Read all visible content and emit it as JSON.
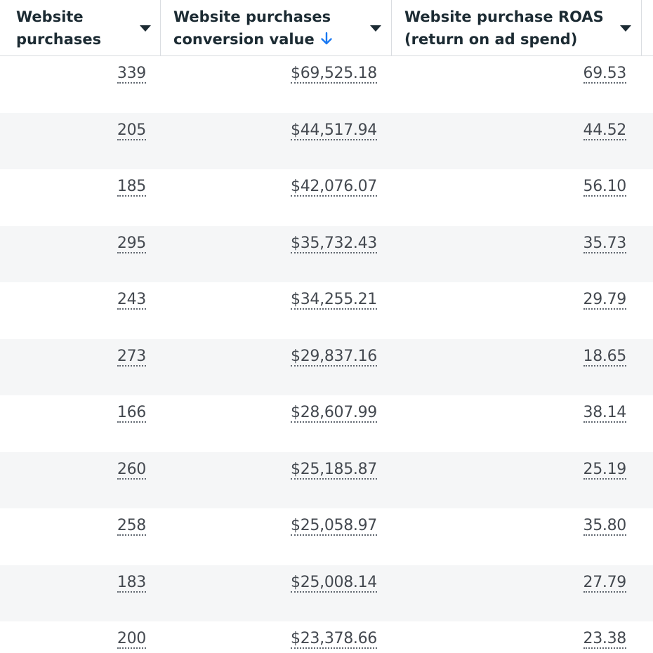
{
  "columns": [
    {
      "label_line1": "Website",
      "label_line2": "purchases",
      "sorted": false
    },
    {
      "label_line1": "Website purchases",
      "label_line2": "conversion value",
      "sorted": true
    },
    {
      "label_line1": "Website purchase ROAS",
      "label_line2": "(return on ad spend)",
      "sorted": false
    }
  ],
  "colors": {
    "sort_arrow": "#1877f2",
    "stripe": "#f5f6f7",
    "text": "#444950",
    "header_text": "#1c2b33"
  },
  "icons": {
    "sort": "arrow-down-icon",
    "dropdown": "caret-down-icon"
  },
  "rows": [
    {
      "purchases": "339",
      "value": "$69,525.18",
      "roas": "69.53"
    },
    {
      "purchases": "205",
      "value": "$44,517.94",
      "roas": "44.52"
    },
    {
      "purchases": "185",
      "value": "$42,076.07",
      "roas": "56.10"
    },
    {
      "purchases": "295",
      "value": "$35,732.43",
      "roas": "35.73"
    },
    {
      "purchases": "243",
      "value": "$34,255.21",
      "roas": "29.79"
    },
    {
      "purchases": "273",
      "value": "$29,837.16",
      "roas": "18.65"
    },
    {
      "purchases": "166",
      "value": "$28,607.99",
      "roas": "38.14"
    },
    {
      "purchases": "260",
      "value": "$25,185.87",
      "roas": "25.19"
    },
    {
      "purchases": "258",
      "value": "$25,058.97",
      "roas": "35.80"
    },
    {
      "purchases": "183",
      "value": "$25,008.14",
      "roas": "27.79"
    },
    {
      "purchases": "200",
      "value": "$23,378.66",
      "roas": "23.38"
    }
  ]
}
